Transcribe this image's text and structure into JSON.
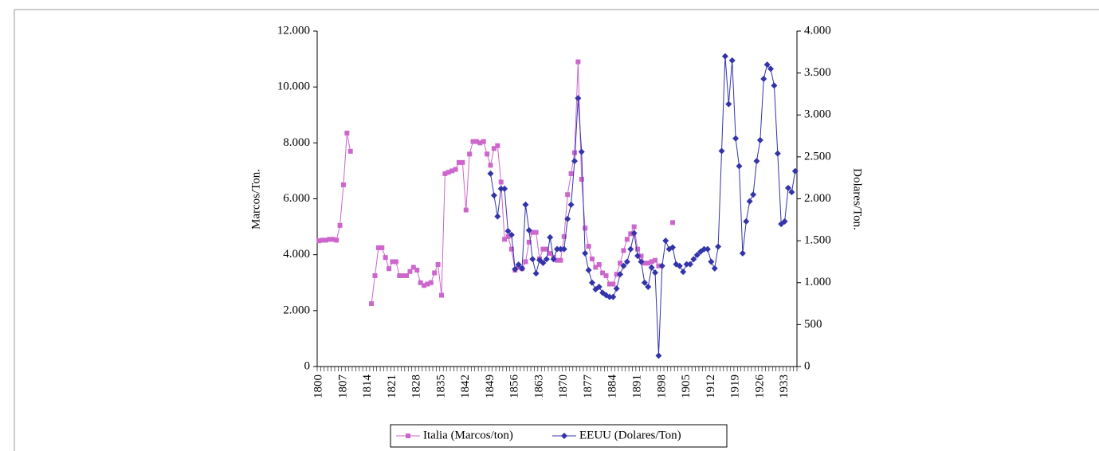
{
  "chart_data": {
    "type": "line",
    "categories": [
      "1800",
      null,
      null,
      null,
      null,
      null,
      null,
      "1807",
      null,
      null,
      null,
      null,
      null,
      null,
      "1814",
      null,
      null,
      null,
      null,
      null,
      null,
      "1821",
      null,
      null,
      null,
      null,
      null,
      null,
      "1828",
      null,
      null,
      null,
      null,
      null,
      null,
      "1835",
      null,
      null,
      null,
      null,
      null,
      null,
      "1842",
      null,
      null,
      null,
      null,
      null,
      null,
      "1849",
      null,
      null,
      null,
      null,
      null,
      null,
      "1856",
      null,
      null,
      null,
      null,
      null,
      null,
      "1863",
      null,
      null,
      null,
      null,
      null,
      null,
      "1870",
      null,
      null,
      null,
      null,
      null,
      null,
      "1877",
      null,
      null,
      null,
      null,
      null,
      null,
      "1884",
      null,
      null,
      null,
      null,
      null,
      null,
      "1891",
      null,
      null,
      null,
      null,
      null,
      null,
      "1898",
      null,
      null,
      null,
      null,
      null,
      null,
      "1905",
      null,
      null,
      null,
      null,
      null,
      null,
      "1912",
      null,
      null,
      null,
      null,
      null,
      null,
      "1919",
      null,
      null,
      null,
      null,
      null,
      null,
      "1926",
      null,
      null,
      null,
      null,
      null,
      null,
      "1933",
      null,
      null,
      null
    ],
    "y_label": "Marcos/Ton.",
    "y2_label": "Dolares/Ton.",
    "ylim": [
      0,
      12000
    ],
    "yticks": [
      0,
      {
        "value": 2000,
        "label": "2.000"
      },
      {
        "value": 4000,
        "label": "4.000"
      },
      {
        "value": 6000,
        "label": "6.000"
      },
      {
        "value": 8000,
        "label": "8.000"
      },
      {
        "value": 10000,
        "label": "10.000"
      },
      {
        "value": 12000,
        "label": "12.000"
      }
    ],
    "y2lim": [
      0,
      4000
    ],
    "y2ticks": [
      0,
      500,
      {
        "value": 1000,
        "label": "1.000"
      },
      {
        "value": 1500,
        "label": "1.500"
      },
      {
        "value": 2000,
        "label": "2.000"
      },
      {
        "value": 2500,
        "label": "2.500"
      },
      {
        "value": 3000,
        "label": "3.000"
      },
      {
        "value": 3500,
        "label": "3.500"
      },
      {
        "value": 4000,
        "label": "4.000"
      }
    ],
    "legend": "bottom",
    "series": [
      {
        "name": "Italia (Marcos/ton)",
        "color": "#cc66cc",
        "marker": "square",
        "axis": "y",
        "values": [
          4500,
          4520,
          4520,
          4550,
          4550,
          4520,
          5050,
          6500,
          8350,
          7700,
          null,
          null,
          null,
          null,
          null,
          2250,
          3250,
          4250,
          4250,
          3900,
          3500,
          3750,
          3750,
          3250,
          3250,
          3250,
          3400,
          3550,
          3450,
          3000,
          2900,
          2950,
          3000,
          3350,
          3650,
          2550,
          6900,
          6950,
          7000,
          7050,
          7300,
          7300,
          5600,
          7600,
          8050,
          8050,
          8000,
          8050,
          7600,
          7200,
          7800,
          7900,
          6600,
          4550,
          4650,
          4200,
          3450,
          3550,
          3500,
          3750,
          4450,
          4800,
          4800,
          3850,
          4200,
          4200,
          4050,
          3900,
          3800,
          3800,
          4650,
          6150,
          6900,
          7650,
          10900,
          6700,
          4950,
          4300,
          3850,
          3550,
          3650,
          3350,
          3250,
          2950,
          2950,
          3300,
          3700,
          4150,
          4550,
          4750,
          5000,
          4200,
          3950,
          3700,
          3700,
          3750,
          3800,
          3600,
          null,
          null,
          null,
          5150,
          null,
          null,
          null,
          null,
          null,
          null,
          null,
          null,
          null,
          null,
          null,
          null,
          null,
          null,
          null,
          null,
          null,
          null,
          null,
          null,
          null,
          null,
          null,
          null,
          null,
          null,
          null,
          null,
          null,
          null,
          null,
          null,
          null,
          null,
          null
        ]
      },
      {
        "name": "EEUU (Dolares/Ton)",
        "color": "#3333aa",
        "marker": "diamond",
        "axis": "y2",
        "values": [
          null,
          null,
          null,
          null,
          null,
          null,
          null,
          null,
          null,
          null,
          null,
          null,
          null,
          null,
          null,
          null,
          null,
          null,
          null,
          null,
          null,
          null,
          null,
          null,
          null,
          null,
          null,
          null,
          null,
          null,
          null,
          null,
          null,
          null,
          null,
          null,
          null,
          null,
          null,
          null,
          null,
          null,
          null,
          null,
          null,
          null,
          null,
          null,
          null,
          2300,
          2040,
          1790,
          2120,
          2120,
          1615,
          1570,
          1160,
          1215,
          1170,
          1930,
          1625,
          1280,
          1110,
          1270,
          1235,
          1280,
          1540,
          1280,
          1400,
          1400,
          1400,
          1760,
          1930,
          2450,
          3200,
          2560,
          1350,
          1150,
          1000,
          920,
          950,
          880,
          850,
          830,
          830,
          930,
          1100,
          1200,
          1250,
          1400,
          1590,
          1320,
          1250,
          1000,
          950,
          1180,
          1120,
          130,
          1200,
          1500,
          1400,
          1420,
          1220,
          1200,
          1130,
          1220,
          1220,
          1280,
          1330,
          1370,
          1400,
          1400,
          1250,
          1170,
          1430,
          2570,
          3700,
          3130,
          3650,
          2720,
          2390,
          1350,
          1730,
          1970,
          2050,
          2450,
          2700,
          3430,
          3600,
          3550,
          3350,
          2540,
          1700,
          1730,
          2130,
          2080,
          2330
        ]
      }
    ]
  }
}
